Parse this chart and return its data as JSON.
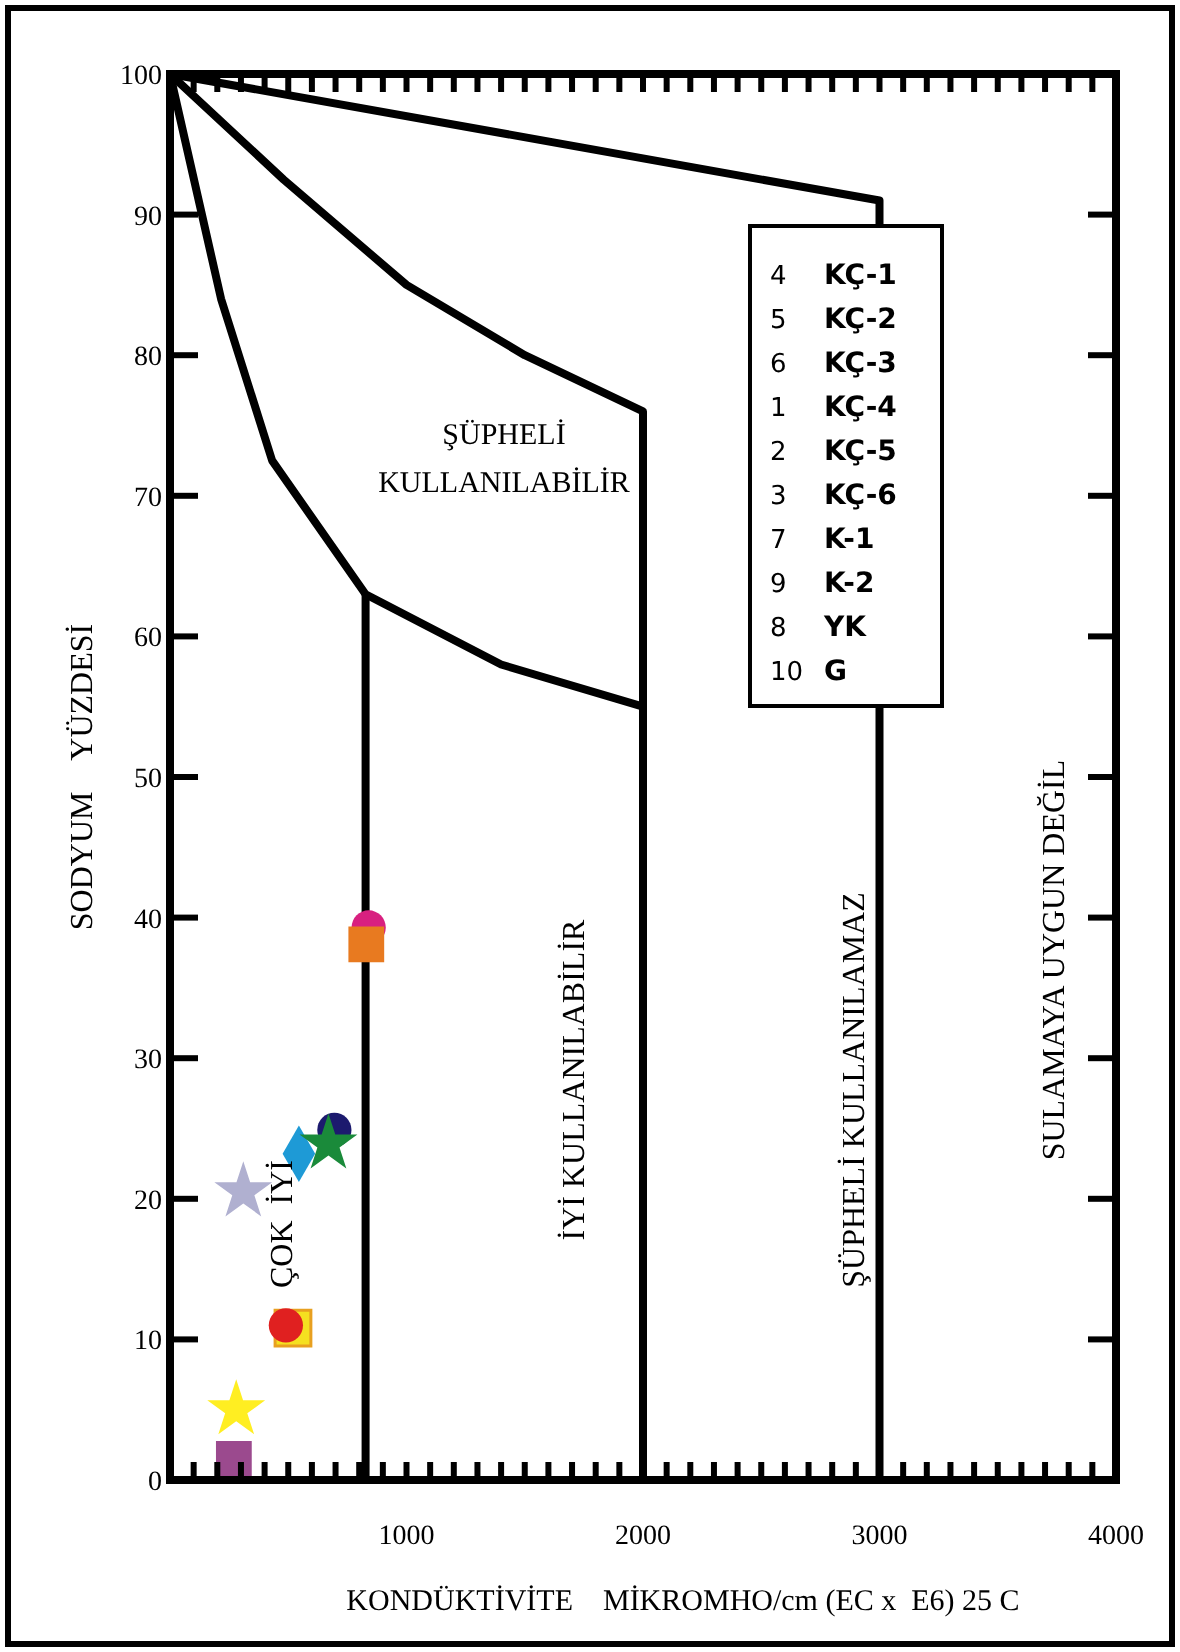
{
  "chart_data": {
    "type": "scatter",
    "xlabel": "KONDÜKTİVİTE    MİKROMHO/cm (EC x  E6) 25 C",
    "ylabel": "SODYUM    YÜZDESİ",
    "xlim": [
      0,
      4000
    ],
    "xticks": [
      1000,
      2000,
      3000,
      4000
    ],
    "ylim": [
      0,
      100
    ],
    "yticks": [
      0,
      10,
      20,
      30,
      40,
      50,
      60,
      70,
      80,
      90,
      100
    ],
    "grid": false,
    "series": [
      {
        "type": "line",
        "color": "#000000",
        "x": [
          0,
          3000,
          3000
        ],
        "values": [
          100,
          91,
          0
        ]
      },
      {
        "type": "line",
        "color": "#000000",
        "x": [
          0,
          480,
          1000,
          1500,
          2000,
          2000
        ],
        "values": [
          100,
          92.5,
          85,
          80,
          76,
          0
        ]
      },
      {
        "type": "line",
        "color": "#000000",
        "x": [
          0,
          216,
          432,
          827,
          1400,
          2000
        ],
        "values": [
          100,
          84,
          72.5,
          63,
          58,
          55
        ]
      },
      {
        "type": "line",
        "color": "#000000",
        "x": [
          827,
          827
        ],
        "values": [
          63,
          0
        ]
      },
      {
        "color": "#9b4a8e",
        "marker": "square",
        "x": [
          270
        ],
        "values": [
          1.5
        ]
      },
      {
        "color": "#ffee22",
        "marker": "star",
        "x": [
          280
        ],
        "values": [
          5
        ]
      },
      {
        "color": "#b0b0d0",
        "marker": "star",
        "x": [
          310
        ],
        "values": [
          20.5
        ]
      },
      {
        "color": "#f5e020",
        "marker": "square",
        "x": [
          520
        ],
        "values": [
          10.8
        ]
      },
      {
        "color": "#e02020",
        "marker": "circle",
        "x": [
          490
        ],
        "values": [
          11
        ]
      },
      {
        "color": "#1e9ad6",
        "marker": "diamond",
        "x": [
          545
        ],
        "values": [
          23.2
        ]
      },
      {
        "color": "#1c1a6e",
        "marker": "circle",
        "x": [
          695
        ],
        "values": [
          24.9
        ]
      },
      {
        "color": "#1a8a3a",
        "marker": "star",
        "x": [
          670
        ],
        "values": [
          23.9
        ]
      },
      {
        "color": "#d82080",
        "marker": "circle",
        "x": [
          840
        ],
        "values": [
          39.3
        ]
      },
      {
        "color": "#e87a20",
        "marker": "square",
        "x": [
          830
        ],
        "values": [
          38.1
        ]
      }
    ],
    "annotations": [
      "ŞÜPHELİ KULLANILABİLİR",
      "İYİ KULLANILABİLİR",
      "ŞÜPHELİ KULLANILAMAZ",
      "SULAMAYA UYGUN DEĞİL",
      "ÇOK  İYİ",
      "4 KÇ-1",
      "5 KÇ-2",
      "6 KÇ-3",
      "1 KÇ-4",
      "2 KÇ-5",
      "3 KÇ-6",
      "7 K-1",
      "9 K-2",
      "8 YK",
      "10 G"
    ]
  }
}
